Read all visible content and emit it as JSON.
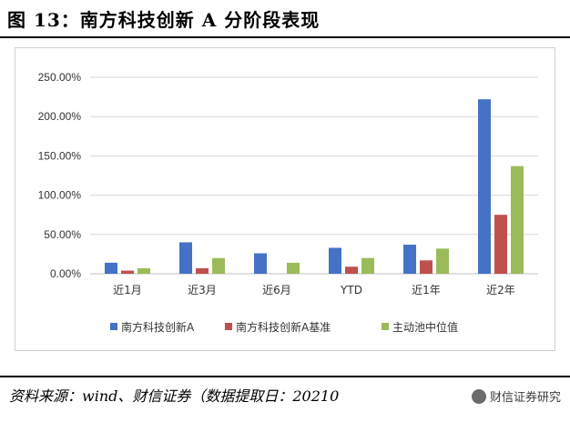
{
  "figure_title": "图 13：南方科技创新 A 分阶段表现",
  "source_text": "资料来源：wind、财信证券（数据提取日：2021",
  "source_tail": "0",
  "watermark": "财信证券研究",
  "colors": {
    "series_1": "#4472C4",
    "series_2": "#C0504D",
    "series_3": "#9BBB59",
    "grid": "#D9D9D9",
    "axis": "#BFBFBF"
  },
  "chart_data": {
    "type": "bar",
    "categories": [
      "近1月",
      "近3月",
      "近6月",
      "YTD",
      "近1年",
      "近2年"
    ],
    "series": [
      {
        "name": "南方科技创新A",
        "values": [
          14,
          40,
          26,
          33,
          37,
          222
        ]
      },
      {
        "name": "南方科技创新A基准",
        "values": [
          4,
          7,
          0,
          9,
          17,
          75
        ]
      },
      {
        "name": "主动池中位值",
        "values": [
          7,
          20,
          14,
          20,
          32,
          137
        ]
      }
    ],
    "ylim": [
      0,
      250
    ],
    "yticks": [
      0,
      50,
      100,
      150,
      200,
      250
    ],
    "ytick_labels": [
      "0.00%",
      "50.00%",
      "100.00%",
      "150.00%",
      "200.00%",
      "250.00%"
    ],
    "grid": true,
    "legend_position": "bottom"
  }
}
